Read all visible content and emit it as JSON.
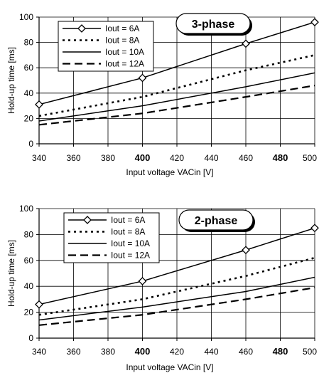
{
  "chart_data": [
    {
      "type": "line",
      "badge": "3-phase",
      "xlabel": "Input voltage VACin [V]",
      "ylabel": "Hold-up time [ms]",
      "xlim": [
        340,
        500
      ],
      "ylim": [
        0,
        100
      ],
      "xticks": [
        {
          "label": "340",
          "bold": false
        },
        {
          "label": "360",
          "bold": false
        },
        {
          "label": "380",
          "bold": false
        },
        {
          "label": "400",
          "bold": true
        },
        {
          "label": "420",
          "bold": false
        },
        {
          "label": "440",
          "bold": false
        },
        {
          "label": "460",
          "bold": false
        },
        {
          "label": "480",
          "bold": true
        },
        {
          "label": "500",
          "bold": false
        }
      ],
      "yticks": [
        "0",
        "20",
        "40",
        "60",
        "80",
        "100"
      ],
      "grid": true,
      "legend_position": "top-left",
      "series": [
        {
          "name": "Iout = 6A",
          "style": "solid-diamond",
          "x": [
            340,
            400,
            460,
            500
          ],
          "y": [
            31,
            52,
            79,
            96
          ]
        },
        {
          "name": "Iout = 8A",
          "style": "dotted",
          "x": [
            340,
            400,
            460,
            500
          ],
          "y": [
            22,
            37,
            58,
            70
          ]
        },
        {
          "name": "Iout = 10A",
          "style": "solid",
          "x": [
            340,
            400,
            460,
            500
          ],
          "y": [
            18,
            30,
            45,
            56
          ]
        },
        {
          "name": "Iout = 12A",
          "style": "dashed",
          "x": [
            340,
            400,
            460,
            500
          ],
          "y": [
            15,
            24,
            37,
            46
          ]
        }
      ]
    },
    {
      "type": "line",
      "badge": "2-phase",
      "xlabel": "Input voltage VACin [V]",
      "ylabel": "Hold-up time [ms]",
      "xlim": [
        340,
        500
      ],
      "ylim": [
        0,
        100
      ],
      "xticks": [
        {
          "label": "340",
          "bold": false
        },
        {
          "label": "360",
          "bold": false
        },
        {
          "label": "380",
          "bold": false
        },
        {
          "label": "400",
          "bold": true
        },
        {
          "label": "420",
          "bold": false
        },
        {
          "label": "440",
          "bold": false
        },
        {
          "label": "460",
          "bold": false
        },
        {
          "label": "480",
          "bold": true
        },
        {
          "label": "500",
          "bold": false
        }
      ],
      "yticks": [
        "0",
        "20",
        "40",
        "60",
        "80",
        "100"
      ],
      "grid": true,
      "legend_position": "top-left",
      "series": [
        {
          "name": "Iout = 6A",
          "style": "solid-diamond",
          "x": [
            340,
            400,
            460,
            500
          ],
          "y": [
            26,
            44,
            68,
            85
          ]
        },
        {
          "name": "Iout = 8A",
          "style": "dotted",
          "x": [
            340,
            400,
            460,
            500
          ],
          "y": [
            18,
            30,
            48,
            62
          ]
        },
        {
          "name": "Iout = 10A",
          "style": "solid",
          "x": [
            340,
            400,
            460,
            500
          ],
          "y": [
            14,
            24,
            36,
            47
          ]
        },
        {
          "name": "Iout = 12A",
          "style": "dashed",
          "x": [
            340,
            400,
            460,
            500
          ],
          "y": [
            10,
            18,
            30,
            39
          ]
        }
      ]
    }
  ]
}
